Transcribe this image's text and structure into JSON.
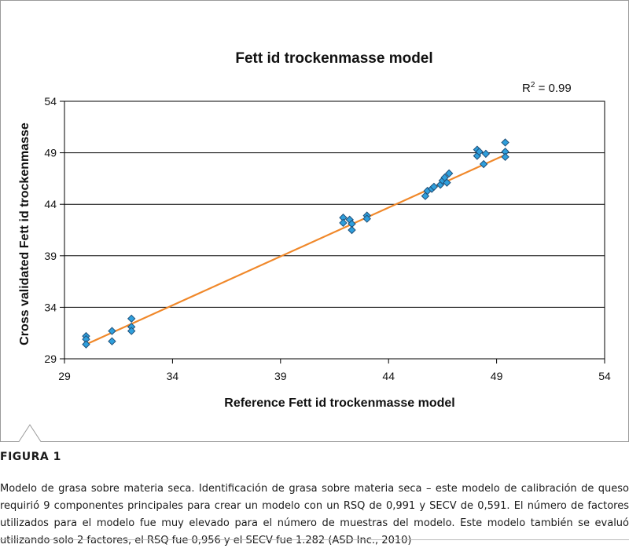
{
  "chart_data": {
    "type": "scatter",
    "title": "Fett id trockenmasse model",
    "xlabel": "Reference Fett id trockenmasse model",
    "ylabel": "Cross validated Fett id trockenmasse",
    "xlim": [
      29,
      54
    ],
    "ylim": [
      29,
      54
    ],
    "xticks": [
      29,
      34,
      39,
      44,
      49,
      54
    ],
    "yticks": [
      29,
      34,
      39,
      44,
      49,
      54
    ],
    "x_tick_labels": [
      "29",
      "34",
      "39",
      "44",
      "49",
      "54"
    ],
    "y_tick_labels": [
      "29",
      "34",
      "39",
      "44",
      "49",
      "54"
    ],
    "grid": "horizontal",
    "annotation": {
      "base": "R",
      "sup": "2",
      "text": " = 0.99"
    },
    "marker_color": "#2f9fdc",
    "marker_edge_color": "#1f4f78",
    "trend_color": "#f0882a",
    "trendline": {
      "x": [
        30,
        49.4
      ],
      "y": [
        30.4,
        48.8
      ]
    },
    "points": [
      {
        "x": 30.0,
        "y": 31.2
      },
      {
        "x": 30.0,
        "y": 30.9
      },
      {
        "x": 30.0,
        "y": 30.4
      },
      {
        "x": 31.2,
        "y": 31.7
      },
      {
        "x": 31.2,
        "y": 30.7
      },
      {
        "x": 32.1,
        "y": 32.9
      },
      {
        "x": 32.1,
        "y": 32.1
      },
      {
        "x": 32.1,
        "y": 31.7
      },
      {
        "x": 41.9,
        "y": 42.7
      },
      {
        "x": 41.9,
        "y": 42.2
      },
      {
        "x": 42.2,
        "y": 42.5
      },
      {
        "x": 42.3,
        "y": 42.1
      },
      {
        "x": 42.3,
        "y": 41.5
      },
      {
        "x": 43.0,
        "y": 42.9
      },
      {
        "x": 43.0,
        "y": 42.6
      },
      {
        "x": 45.7,
        "y": 44.8
      },
      {
        "x": 45.8,
        "y": 45.3
      },
      {
        "x": 46.0,
        "y": 45.5
      },
      {
        "x": 46.1,
        "y": 45.7
      },
      {
        "x": 46.4,
        "y": 45.9
      },
      {
        "x": 46.5,
        "y": 46.3
      },
      {
        "x": 46.6,
        "y": 46.6
      },
      {
        "x": 46.7,
        "y": 46.1
      },
      {
        "x": 46.8,
        "y": 47.0
      },
      {
        "x": 48.1,
        "y": 49.3
      },
      {
        "x": 48.1,
        "y": 48.7
      },
      {
        "x": 48.2,
        "y": 49.1
      },
      {
        "x": 48.4,
        "y": 47.9
      },
      {
        "x": 48.5,
        "y": 48.9
      },
      {
        "x": 49.4,
        "y": 50.0
      },
      {
        "x": 49.4,
        "y": 49.1
      },
      {
        "x": 49.4,
        "y": 48.6
      }
    ]
  },
  "caption": {
    "label": "FIGURA 1",
    "text": "Modelo de grasa sobre materia seca. Identificación de grasa sobre materia seca – este modelo de calibración de queso requirió 9 componentes principales para crear un modelo con un RSQ de 0,991 y SECV de 0,591. El número de factores utilizados para el modelo fue muy elevado para el número de muestras del modelo. Este modelo también se evaluó utilizando solo 2 factores, el RSQ fue 0,956 y el SECV fue 1.282 (ASD Inc., 2010)"
  }
}
